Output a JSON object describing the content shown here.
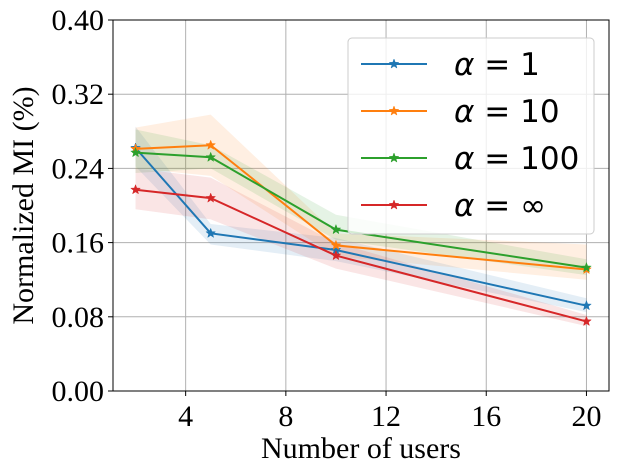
{
  "chart_data": {
    "type": "line",
    "title": "",
    "xlabel": "Number of users",
    "ylabel": "Normalized MI (%)",
    "x": [
      2,
      5,
      10,
      20
    ],
    "xlim": [
      1.1,
      20.9
    ],
    "ylim": [
      0,
      0.4
    ],
    "xticks": [
      4,
      8,
      12,
      16,
      20
    ],
    "xtick_labels": [
      "4",
      "8",
      "12",
      "16",
      "20"
    ],
    "yticks": [
      0,
      0.08,
      0.16,
      0.24,
      0.32,
      0.4
    ],
    "ytick_labels": [
      "0.00",
      "0.08",
      "0.16",
      "0.24",
      "0.32",
      "0.40"
    ],
    "grid": true,
    "legend_position": "top-right",
    "series": [
      {
        "name": "α = 1",
        "legend_prefix": "α",
        "legend_value": "1",
        "color": "#1f77b4",
        "values": [
          0.262,
          0.17,
          0.152,
          0.092
        ],
        "lower": [
          0.242,
          0.158,
          0.14,
          0.085
        ],
        "upper": [
          0.285,
          0.18,
          0.165,
          0.1
        ]
      },
      {
        "name": "α = 10",
        "legend_prefix": "α",
        "legend_value": "10",
        "color": "#ff7f0e",
        "values": [
          0.261,
          0.265,
          0.157,
          0.131
        ],
        "lower": [
          0.24,
          0.232,
          0.145,
          0.12
        ],
        "upper": [
          0.284,
          0.298,
          0.17,
          0.158
        ]
      },
      {
        "name": "α = 100",
        "legend_prefix": "α",
        "legend_value": "100",
        "color": "#2ca02c",
        "values": [
          0.257,
          0.252,
          0.174,
          0.133
        ],
        "lower": [
          0.235,
          0.24,
          0.163,
          0.125
        ],
        "upper": [
          0.282,
          0.265,
          0.19,
          0.142
        ]
      },
      {
        "name": "α = ∞",
        "legend_prefix": "α",
        "legend_value": "∞",
        "color": "#d62728",
        "values": [
          0.217,
          0.208,
          0.146,
          0.075
        ],
        "lower": [
          0.196,
          0.185,
          0.132,
          0.07
        ],
        "upper": [
          0.24,
          0.23,
          0.16,
          0.082
        ]
      }
    ]
  }
}
